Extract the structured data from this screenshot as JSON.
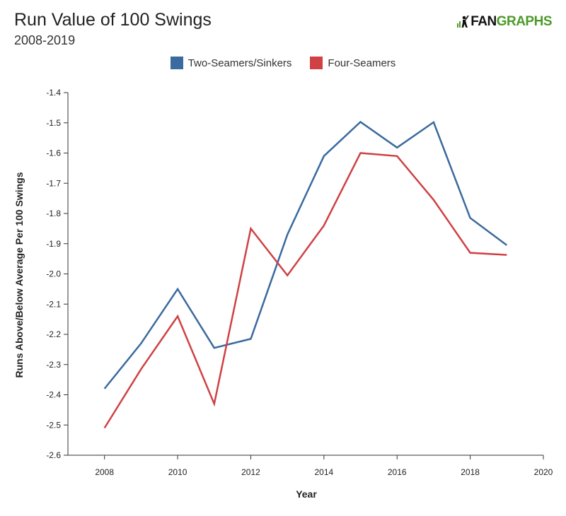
{
  "header": {
    "title": "Run Value of 100 Swings",
    "subtitle": "2008-2019",
    "logo_text_a": "FAN",
    "logo_text_b": "GRAPHS"
  },
  "colors": {
    "two_seam": "#3a6a9e",
    "four_seam": "#cf4144",
    "logo_green": "#4d9a2a"
  },
  "chart_data": {
    "type": "line",
    "xlabel": "Year",
    "ylabel": "Runs Above/Below Average Per 100 Swings",
    "xlim": [
      2007,
      2020
    ],
    "ylim": [
      -2.6,
      -1.4
    ],
    "xticks": [
      2008,
      2010,
      2012,
      2014,
      2016,
      2018,
      2020
    ],
    "yticks": [
      -1.4,
      -1.5,
      -1.6,
      -1.7,
      -1.8,
      -1.9,
      -2.0,
      -2.1,
      -2.2,
      -2.3,
      -2.4,
      -2.5,
      -2.6
    ],
    "ytick_labels": [
      "-1.4",
      "-1.5",
      "-1.6",
      "-1.7",
      "-1.8",
      "-1.9",
      "-2.0",
      "-2.1",
      "-2.2",
      "-2.3",
      "-2.4",
      "-2.5",
      "-2.6"
    ],
    "grid": false,
    "legend_position": "top-center",
    "x": [
      2008,
      2009,
      2010,
      2011,
      2012,
      2013,
      2014,
      2015,
      2016,
      2017,
      2018,
      2019
    ],
    "series": [
      {
        "name": "Two-Seamers/Sinkers",
        "color": "#3a6a9e",
        "values": [
          -2.38,
          -2.23,
          -2.05,
          -2.245,
          -2.215,
          -1.87,
          -1.61,
          -1.497,
          -1.582,
          -1.498,
          -1.815,
          -1.905
        ]
      },
      {
        "name": "Four-Seamers",
        "color": "#cf4144",
        "values": [
          -2.51,
          -2.315,
          -2.14,
          -2.43,
          -1.85,
          -2.005,
          -1.84,
          -1.6,
          -1.61,
          -1.755,
          -1.93,
          -1.937
        ]
      }
    ]
  }
}
